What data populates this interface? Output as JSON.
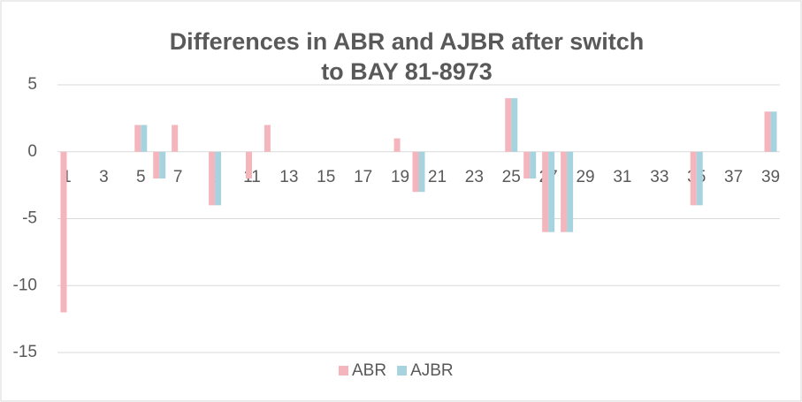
{
  "chart_data": {
    "type": "bar",
    "title": "Differences in ABR and AJBR after switch to BAY 81-8973",
    "categories": [
      "1",
      null,
      "3",
      null,
      "5",
      null,
      "7",
      null,
      "9",
      null,
      "11",
      null,
      "13",
      null,
      "15",
      null,
      "17",
      null,
      "19",
      null,
      "21",
      null,
      "23",
      null,
      "25",
      null,
      "27",
      null,
      "29",
      null,
      "31",
      null,
      "33",
      null,
      "35",
      null,
      "37",
      null,
      "39"
    ],
    "series": [
      {
        "name": "ABR",
        "color": "#f4b6bc",
        "values": [
          -12,
          0,
          0,
          0,
          2,
          -2,
          2,
          0,
          -4,
          0,
          -2,
          2,
          0,
          0,
          0,
          0,
          0,
          0,
          1,
          -3,
          0,
          0,
          0,
          0,
          4,
          -2,
          -6,
          -6,
          0,
          0,
          0,
          0,
          0,
          0,
          -4,
          0,
          0,
          0,
          3
        ]
      },
      {
        "name": "AJBR",
        "color": "#a6d3de",
        "values": [
          0,
          0,
          0,
          0,
          2,
          -2,
          0,
          0,
          -4,
          0,
          0,
          0,
          0,
          0,
          0,
          0,
          0,
          0,
          0,
          -3,
          0,
          0,
          0,
          0,
          4,
          -2,
          -6,
          -6,
          0,
          0,
          0,
          0,
          0,
          0,
          -4,
          0,
          0,
          0,
          3
        ]
      }
    ],
    "ylim": [
      -15,
      5
    ],
    "yticks": [
      -15,
      -10,
      -5,
      0,
      5
    ],
    "grid": true,
    "legend": "bottom"
  }
}
